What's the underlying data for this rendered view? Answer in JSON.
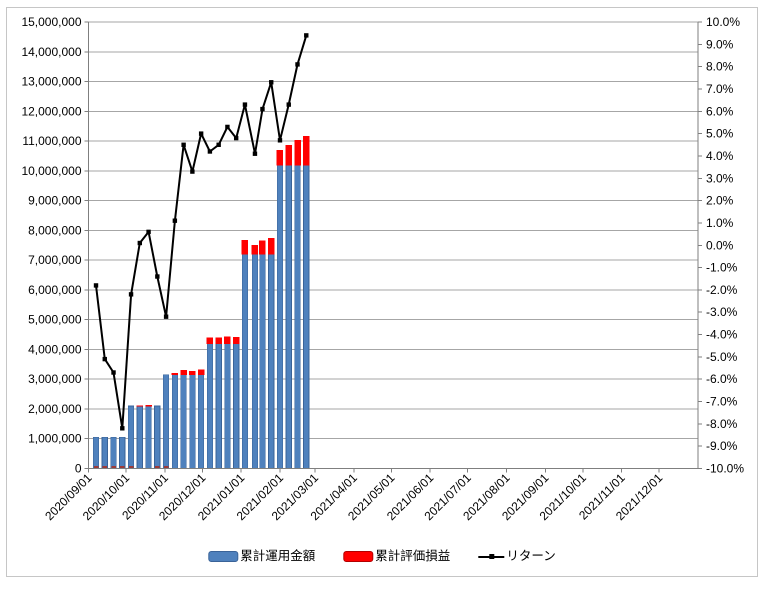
{
  "chart_data": {
    "type": "combo-bar-line",
    "title": "",
    "x": [
      "2020/09/07",
      "2020/09/14",
      "2020/09/21",
      "2020/09/28",
      "2020/10/05",
      "2020/10/12",
      "2020/10/19",
      "2020/10/26",
      "2020/11/02",
      "2020/11/09",
      "2020/11/16",
      "2020/11/23",
      "2020/11/30",
      "2020/12/07",
      "2020/12/14",
      "2020/12/21",
      "2020/12/28",
      "2021/01/04",
      "2021/01/12",
      "2021/01/18",
      "2021/01/25",
      "2021/02/01",
      "2021/02/08",
      "2021/02/15",
      "2021/02/22"
    ],
    "series": [
      {
        "name": "累計運用金額",
        "type": "bar",
        "stack": "total",
        "axis": "left",
        "color": "#4F81BD",
        "values": [
          1050000,
          1050000,
          1050000,
          1050000,
          2100000,
          2100000,
          2100000,
          2100000,
          3150000,
          3150000,
          3150000,
          3150000,
          3150000,
          4200000,
          4200000,
          4200000,
          4200000,
          7200000,
          7200000,
          7200000,
          7200000,
          10200000,
          10200000,
          10200000,
          10200000
        ]
      },
      {
        "name": "累計評価損益",
        "type": "bar",
        "stack": "total",
        "axis": "left",
        "color": "#FF0000",
        "values": [
          -19000,
          -54000,
          -60000,
          -86000,
          -46000,
          2000,
          13000,
          -29000,
          -101000,
          35000,
          142000,
          104000,
          158000,
          176000,
          189000,
          223000,
          202000,
          454000,
          295000,
          439000,
          526000,
          479000,
          643000,
          826000,
          959000
        ]
      },
      {
        "name": "リターン",
        "type": "line",
        "axis": "right",
        "color": "#000000",
        "marker": "square",
        "values": [
          -1.8,
          -5.1,
          -5.7,
          -8.2,
          -2.2,
          0.1,
          0.6,
          -1.4,
          -3.2,
          1.1,
          4.5,
          3.3,
          5.0,
          4.2,
          4.5,
          5.3,
          4.8,
          6.3,
          4.1,
          6.1,
          7.3,
          4.7,
          6.3,
          8.1,
          9.4
        ]
      }
    ],
    "left_axis": {
      "min": 0,
      "max": 15000000,
      "step": 1000000,
      "tick_labels": [
        "0",
        "1,000,000",
        "2,000,000",
        "3,000,000",
        "4,000,000",
        "5,000,000",
        "6,000,000",
        "7,000,000",
        "8,000,000",
        "9,000,000",
        "10,000,000",
        "11,000,000",
        "12,000,000",
        "13,000,000",
        "14,000,000",
        "15,000,000"
      ]
    },
    "right_axis": {
      "min": -10,
      "max": 10,
      "step": 1,
      "tick_labels": [
        "10.0%",
        "9.0%",
        "8.0%",
        "7.0%",
        "6.0%",
        "5.0%",
        "4.0%",
        "3.0%",
        "2.0%",
        "1.0%",
        "0.0%",
        "-1.0%",
        "-2.0%",
        "-3.0%",
        "-4.0%",
        "-5.0%",
        "-6.0%",
        "-7.0%",
        "-8.0%",
        "-9.0%",
        "-10.0%"
      ]
    },
    "x_axis": {
      "range_start": "2020/09/01",
      "range_end": "2022/01/01",
      "tick_labels": [
        "2020/09/01",
        "2020/10/01",
        "2020/11/01",
        "2020/12/01",
        "2021/01/01",
        "2021/02/01",
        "2021/03/01",
        "2021/04/01",
        "2021/05/01",
        "2021/06/01",
        "2021/07/01",
        "2021/08/01",
        "2021/09/01",
        "2021/10/01",
        "2021/11/01",
        "2021/12/01"
      ]
    },
    "grid": "horizontal-major",
    "legend_position": "bottom"
  },
  "legend": {
    "invested_label": "累計運用金額",
    "pl_label": "累計評価損益",
    "return_label": "リターン"
  },
  "colors": {
    "bar_blue": "#4F81BD",
    "bar_blue_border": "#3a6398",
    "bar_red": "#FF0000",
    "bar_red_dark": "#9e3a38",
    "line_black": "#000000",
    "gridline": "#a6a6a6",
    "axis": "#7f7f7f",
    "text": "#000000"
  }
}
